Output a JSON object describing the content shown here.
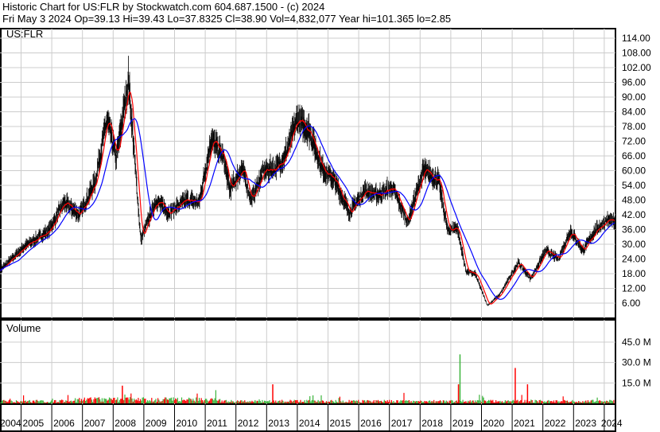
{
  "header": {
    "title": "Historic Chart for US:FLR by Stockwatch.com 604.687.1500 - (c) 2024",
    "quote": "Fri May  3 2024  Op=39.13  Hi=39.43  Lo=37.8325  Cl=38.90  Vol=4,832,077  Year hi=101.365  lo=2.85"
  },
  "chart_data": [
    {
      "type": "line",
      "title": "US:FLR",
      "yticks": [
        "114.00",
        "108.00",
        "102.00",
        "96.00",
        "90.00",
        "84.00",
        "78.00",
        "72.00",
        "66.00",
        "60.00",
        "54.00",
        "48.00",
        "42.00",
        "36.00",
        "30.00",
        "24.00",
        "18.00",
        "12.00",
        "6.00"
      ],
      "ylim": [
        6,
        114
      ],
      "grid": true,
      "series": [
        {
          "kind": "price-bars",
          "color": "#000000"
        },
        {
          "kind": "moving-average-short",
          "color": "#ff0000"
        },
        {
          "kind": "moving-average-long",
          "color": "#0000ff"
        }
      ],
      "x": [
        2004.3,
        2005.1,
        2005.9,
        2006.4,
        2006.9,
        2007.4,
        2007.8,
        2008.1,
        2008.5,
        2008.7,
        2008.9,
        2009.4,
        2009.8,
        2010.4,
        2010.8,
        2011.2,
        2011.6,
        2011.8,
        2012.2,
        2012.5,
        2012.9,
        2013.3,
        2013.6,
        2014.0,
        2014.4,
        2014.8,
        2015.2,
        2015.7,
        2016.2,
        2016.6,
        2017.1,
        2017.6,
        2018.1,
        2018.6,
        2018.9,
        2019.2,
        2019.5,
        2019.8,
        2020.2,
        2020.6,
        2021.2,
        2021.6,
        2022.1,
        2022.5,
        2022.9,
        2023.3,
        2023.7,
        2024.1,
        2024.34
      ],
      "y": [
        19.3,
        29,
        35.5,
        47,
        42,
        55,
        81,
        65,
        97,
        65,
        32,
        48,
        43,
        48,
        47,
        73,
        65,
        52,
        61,
        48,
        60,
        61,
        66,
        81,
        76,
        61,
        56,
        43,
        52,
        50,
        53,
        39,
        60,
        56,
        35.5,
        37,
        19,
        17.7,
        5,
        9.6,
        22.5,
        16,
        27.4,
        24,
        35.5,
        27.4,
        35.5,
        40,
        38.9
      ]
    },
    {
      "type": "bar",
      "title": "Volume",
      "yticks": [
        "45.0 M",
        "30.0 M",
        "15.0 M"
      ],
      "ylim": [
        0,
        55
      ],
      "colors": {
        "up": "#3cb43c",
        "down": "#ff0000"
      },
      "spikes": [
        {
          "x": 2013.2,
          "value": 14
        },
        {
          "x": 2019.3,
          "value": 36
        },
        {
          "x": 2019.25,
          "value": 14
        },
        {
          "x": 2021.1,
          "value": 26
        },
        {
          "x": 2021.5,
          "value": 14
        },
        {
          "x": 2008.3,
          "value": 13
        }
      ]
    }
  ],
  "xaxis": {
    "ticks": [
      "2004",
      "2005",
      "2006",
      "2007",
      "2008",
      "2009",
      "2010",
      "2011",
      "2012",
      "2013",
      "2014",
      "2015",
      "2016",
      "2017",
      "2018",
      "2019",
      "2020",
      "2021",
      "2022",
      "2023",
      "2024"
    ]
  }
}
